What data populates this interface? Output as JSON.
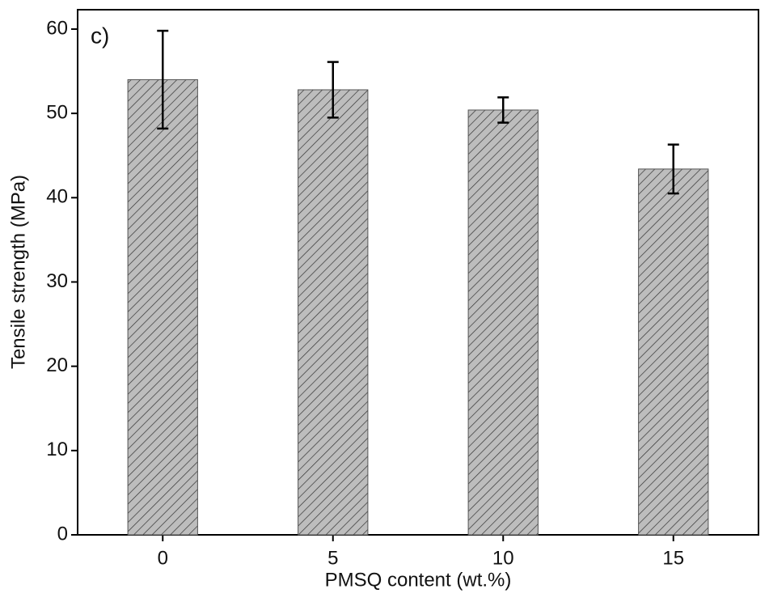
{
  "chart_data": {
    "type": "bar",
    "annotation": "c)",
    "xlabel": "PMSQ content (wt.%)",
    "ylabel": "Tensile strength (MPa)",
    "categories": [
      "0",
      "5",
      "10",
      "15"
    ],
    "values": [
      54.0,
      52.8,
      50.4,
      43.4
    ],
    "errors": [
      5.8,
      3.3,
      1.5,
      2.9
    ],
    "color": "#bdbdbd",
    "ylim": [
      0,
      62.3
    ],
    "yticks": [
      0,
      10,
      20,
      30,
      40,
      50,
      60
    ]
  }
}
